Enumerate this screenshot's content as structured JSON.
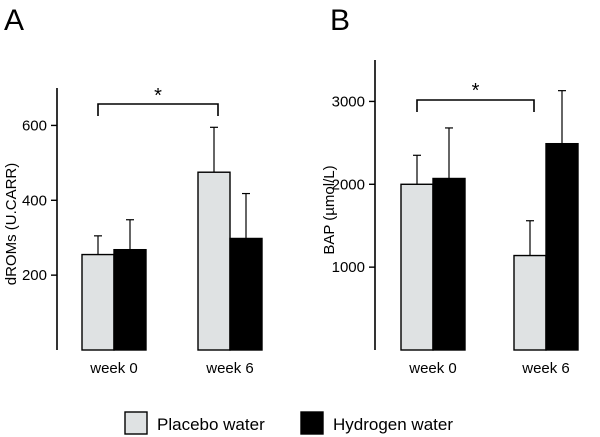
{
  "legend": [
    {
      "name": "Placebo water",
      "color": "#dfe2e3"
    },
    {
      "name": "Hydrogen water",
      "color": "#000000"
    }
  ],
  "chart_data": [
    {
      "panel": "A",
      "type": "bar",
      "categories": [
        "week 0",
        "week 6"
      ],
      "series": [
        {
          "name": "Placebo water",
          "values": [
            255,
            475
          ],
          "errors": [
            50,
            120
          ]
        },
        {
          "name": "Hydrogen water",
          "values": [
            268,
            298
          ],
          "errors": [
            80,
            120
          ]
        }
      ],
      "ylabel": "dROMs (U.CARR)",
      "yticks": [
        200,
        400,
        600
      ],
      "ylim": [
        0,
        700
      ],
      "significance": {
        "symbol": "*",
        "between": "Placebo water week 0 vs week 6"
      }
    },
    {
      "panel": "B",
      "type": "bar",
      "categories": [
        "week 0",
        "week 6"
      ],
      "series": [
        {
          "name": "Placebo water",
          "values": [
            2000,
            1140
          ],
          "errors": [
            350,
            420
          ]
        },
        {
          "name": "Hydrogen water",
          "values": [
            2070,
            2490
          ],
          "errors": [
            610,
            640
          ]
        }
      ],
      "ylabel": "BAP (µmol/L)",
      "yticks": [
        1000,
        2000,
        3000
      ],
      "ylim": [
        0,
        3500
      ],
      "significance": {
        "symbol": "*",
        "between": "Placebo water week 0 vs week 6"
      }
    }
  ]
}
